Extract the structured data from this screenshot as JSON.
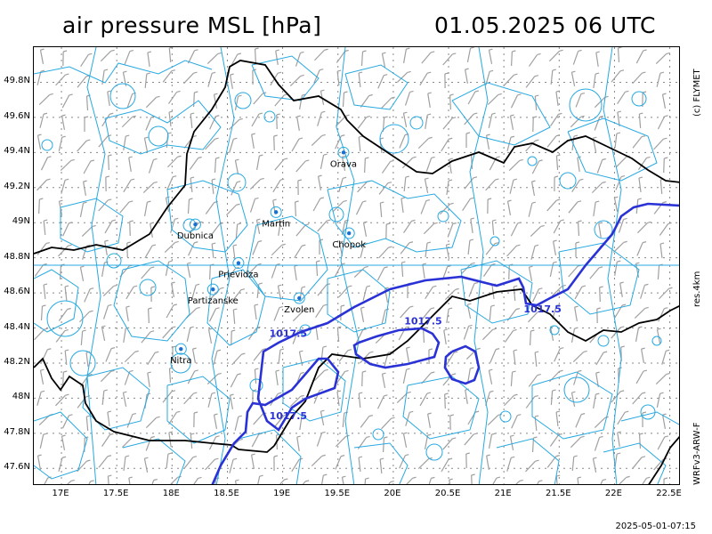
{
  "header": {
    "title": "air pressure MSL [hPa]",
    "datetime": "01.05.2025   06 UTC"
  },
  "side_labels": {
    "copyright": "(c) FLYMET",
    "resolution": "res.4km",
    "model": "WRFv3-ARW-F"
  },
  "footer": {
    "timestamp": "2025-05-01-07:15"
  },
  "axes": {
    "lat_ticks": [
      "49.8N",
      "49.6N",
      "49.4N",
      "49.2N",
      "49N",
      "48.8N",
      "48.6N",
      "48.4N",
      "48.2N",
      "48N",
      "47.8N",
      "47.6N"
    ],
    "lon_ticks": [
      "17E",
      "17.5E",
      "18E",
      "18.5E",
      "19E",
      "19.5E",
      "20E",
      "20.5E",
      "21E",
      "21.5E",
      "22E",
      "22.5E"
    ],
    "lat_values": [
      49.8,
      49.6,
      49.4,
      49.2,
      49.0,
      48.8,
      48.6,
      48.4,
      48.2,
      48.0,
      47.8,
      47.6
    ],
    "lon_values": [
      17,
      17.5,
      18,
      18.5,
      19,
      19.5,
      20,
      20.5,
      21,
      21.5,
      22,
      22.5
    ],
    "lat_range": [
      47.5,
      50.0
    ],
    "lon_range": [
      16.75,
      22.6
    ]
  },
  "cities": [
    {
      "name": "Orava",
      "lat": 49.4,
      "lon": 19.55
    },
    {
      "name": "Martin",
      "lat": 49.06,
      "lon": 18.94
    },
    {
      "name": "Dubnica",
      "lat": 48.99,
      "lon": 18.21
    },
    {
      "name": "Chopok",
      "lat": 48.94,
      "lon": 19.6
    },
    {
      "name": "Prievidza",
      "lat": 48.77,
      "lon": 18.6
    },
    {
      "name": "Partizanske",
      "lat": 48.62,
      "lon": 18.37
    },
    {
      "name": "Zvolen",
      "lat": 48.57,
      "lon": 19.15
    },
    {
      "name": "Nitra",
      "lat": 48.28,
      "lon": 18.08
    }
  ],
  "isobars": {
    "color": "#2a32d6",
    "labels": [
      {
        "text": "1017.5",
        "lat": 48.44,
        "lon": 20.27
      },
      {
        "text": "1017.5",
        "lat": 48.37,
        "lon": 19.05
      },
      {
        "text": "1017.5",
        "lat": 48.51,
        "lon": 21.35
      },
      {
        "text": "1017.5",
        "lat": 47.9,
        "lon": 19.05
      }
    ]
  },
  "colors": {
    "terrain_contour": "#27a9e1",
    "border": "#000000",
    "grid": "#888888",
    "wind_barb": "#a0a0a0"
  }
}
